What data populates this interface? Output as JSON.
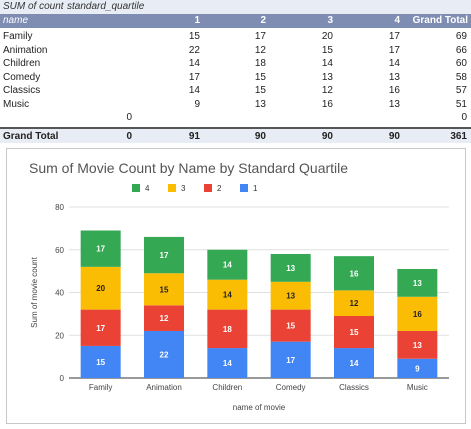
{
  "pivot": {
    "corner_label": "SUM of count",
    "column_field": "standard_quartile",
    "row_field": "name",
    "quartile_headers": [
      "1",
      "2",
      "3",
      "4"
    ],
    "grand_total_header": "Grand Total",
    "rows": [
      {
        "name": "Family",
        "q1": "15",
        "q2": "17",
        "q3": "20",
        "q4": "17",
        "total": "69"
      },
      {
        "name": "Animation",
        "q1": "22",
        "q2": "12",
        "q3": "15",
        "q4": "17",
        "total": "66"
      },
      {
        "name": "Children",
        "q1": "14",
        "q2": "18",
        "q3": "14",
        "q4": "14",
        "total": "60"
      },
      {
        "name": "Comedy",
        "q1": "17",
        "q2": "15",
        "q3": "13",
        "q4": "13",
        "total": "58"
      },
      {
        "name": "Classics",
        "q1": "14",
        "q2": "15",
        "q3": "12",
        "q4": "16",
        "total": "57"
      },
      {
        "name": "Music",
        "q1": "9",
        "q2": "13",
        "q3": "16",
        "q4": "13",
        "total": "51"
      },
      {
        "name": "",
        "q0": "0",
        "q1": "",
        "q2": "",
        "q3": "",
        "q4": "",
        "total": "0"
      }
    ],
    "grand_total_row": {
      "label": "Grand Total",
      "q0": "0",
      "q1": "91",
      "q2": "90",
      "q3": "90",
      "q4": "90",
      "total": "361"
    }
  },
  "chart_data": {
    "type": "bar",
    "stacked": true,
    "title": "Sum of Movie Count by Name by Standard Quartile",
    "xlabel": "name of movie",
    "ylabel": "Sum of movie count",
    "ylim": [
      0,
      80
    ],
    "yticks": [
      0,
      20,
      40,
      60,
      80
    ],
    "grid": true,
    "legend_position": "top",
    "categories": [
      "Family",
      "Animation",
      "Children",
      "Comedy",
      "Classics",
      "Music"
    ],
    "series": [
      {
        "name": "1",
        "color": "#4285f4",
        "values": [
          15,
          22,
          14,
          17,
          14,
          9
        ]
      },
      {
        "name": "2",
        "color": "#ea4335",
        "values": [
          17,
          12,
          18,
          15,
          15,
          13
        ]
      },
      {
        "name": "3",
        "color": "#fbbc04",
        "values": [
          20,
          15,
          14,
          13,
          12,
          16
        ]
      },
      {
        "name": "4",
        "color": "#34a853",
        "values": [
          17,
          17,
          14,
          13,
          16,
          13
        ]
      }
    ],
    "legend_order": [
      "4",
      "3",
      "2",
      "1"
    ]
  }
}
